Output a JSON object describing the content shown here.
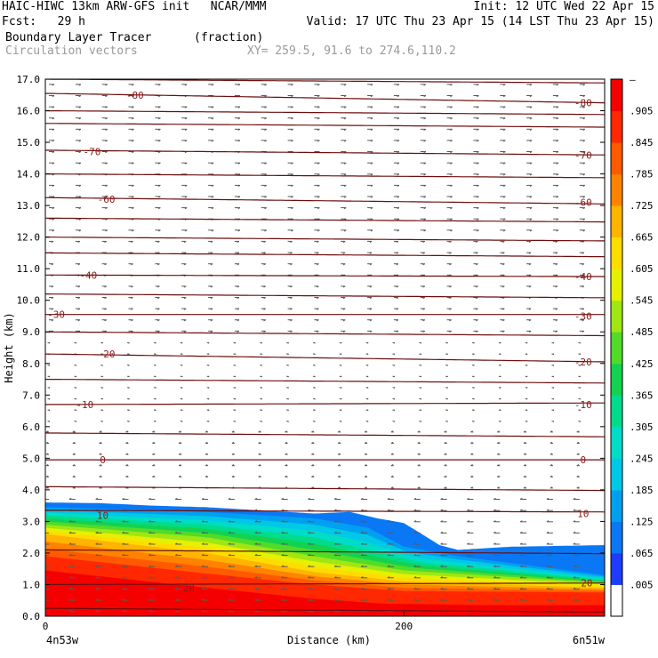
{
  "header": {
    "line1_left": "HAIC-HIWC 13km ARW-GFS init   NCAR/MMM",
    "line1_right": "Init: 12 UTC Wed 22 Apr 15",
    "line2_left": "Fcst:   29 h",
    "line2_right": "Valid: 17 UTC Thu 23 Apr 15 (14 LST Thu 23 Apr 15)",
    "field_name": "Boundary Layer Tracer",
    "field_units": "(fraction)",
    "overlay_name": "Circulation vectors",
    "xy_text": "XY= 259.5, 91.6 to 274.6,110.2"
  },
  "chart_data": {
    "type": "heatmap",
    "title": "Boundary Layer Tracer",
    "xlabel": "Distance (km)",
    "ylabel": "Height (km)",
    "xlim": [
      0,
      312
    ],
    "ylim": [
      0,
      17
    ],
    "x_ticks": [
      0,
      200
    ],
    "x_tick_labels": [
      "0",
      "200"
    ],
    "x_end_labels": [
      "4n53w",
      "6n51w"
    ],
    "y_ticks": [
      0.0,
      1.0,
      2.0,
      3.0,
      4.0,
      5.0,
      6.0,
      7.0,
      8.0,
      9.0,
      10.0,
      11.0,
      12.0,
      13.0,
      14.0,
      15.0,
      16.0,
      17.0
    ],
    "y_tick_labels": [
      "0.0",
      "1.0",
      "2.0",
      "3.0",
      "4.0",
      "5.0",
      "6.0",
      "7.0",
      "8.0",
      "9.0",
      "10.0",
      "11.0",
      "12.0",
      "13.0",
      "14.0",
      "15.0",
      "16.0",
      "17.0"
    ],
    "colorbar": {
      "levels": [
        0.005,
        0.065,
        0.125,
        0.185,
        0.245,
        0.305,
        0.365,
        0.425,
        0.485,
        0.545,
        0.605,
        0.665,
        0.725,
        0.785,
        0.845,
        0.905
      ],
      "labels": [
        ".005",
        ".065",
        ".125",
        ".185",
        ".245",
        ".305",
        ".365",
        ".425",
        ".485",
        ".545",
        ".605",
        ".665",
        ".725",
        ".785",
        ".845",
        ".905"
      ],
      "top_label": "–",
      "colors": [
        "#ffffff",
        "#1e3cff",
        "#0a78f5",
        "#00a0f0",
        "#00c8e6",
        "#00dcc8",
        "#00dc8c",
        "#14d250",
        "#50dc28",
        "#a0e614",
        "#e6f000",
        "#ffdc00",
        "#ffb400",
        "#ff8200",
        "#ff5a00",
        "#ff2800",
        "#f50000"
      ]
    },
    "top_of_tracer_km": [
      [
        0,
        3.6
      ],
      [
        30,
        3.58
      ],
      [
        60,
        3.5
      ],
      [
        90,
        3.45
      ],
      [
        120,
        3.35
      ],
      [
        150,
        3.25
      ],
      [
        170,
        3.3
      ],
      [
        185,
        3.1
      ],
      [
        200,
        2.95
      ],
      [
        210,
        2.6
      ],
      [
        220,
        2.25
      ],
      [
        230,
        2.1
      ],
      [
        260,
        2.2
      ],
      [
        312,
        2.25
      ]
    ],
    "tracer_bands": [
      {
        "value": 0.125,
        "heights_km": [
          [
            0,
            3.45
          ],
          [
            90,
            3.3
          ],
          [
            150,
            3.1
          ],
          [
            180,
            2.8
          ],
          [
            200,
            2.2
          ],
          [
            230,
            1.9
          ],
          [
            312,
            1.3
          ]
        ]
      },
      {
        "value": 0.305,
        "heights_km": [
          [
            0,
            3.2
          ],
          [
            90,
            2.9
          ],
          [
            150,
            2.5
          ],
          [
            180,
            2.1
          ],
          [
            210,
            1.7
          ],
          [
            312,
            1.15
          ]
        ]
      },
      {
        "value": 0.485,
        "heights_km": [
          [
            0,
            2.9
          ],
          [
            90,
            2.5
          ],
          [
            150,
            1.9
          ],
          [
            200,
            1.45
          ],
          [
            312,
            1.05
          ]
        ]
      },
      {
        "value": 0.665,
        "heights_km": [
          [
            0,
            2.6
          ],
          [
            90,
            2.0
          ],
          [
            150,
            1.4
          ],
          [
            200,
            1.1
          ],
          [
            312,
            0.9
          ]
        ]
      },
      {
        "value": 0.845,
        "heights_km": [
          [
            0,
            1.9
          ],
          [
            90,
            1.35
          ],
          [
            150,
            1.0
          ],
          [
            200,
            0.8
          ],
          [
            312,
            0.75
          ]
        ]
      }
    ],
    "temperature_contours": [
      {
        "label": "-80",
        "heights_km": [
          [
            0,
            16.55
          ],
          [
            312,
            16.25
          ]
        ],
        "label_positions_km": [
          [
            50,
            16.5
          ],
          [
            300,
            16.25
          ]
        ]
      },
      {
        "label": "-70",
        "heights_km": [
          [
            0,
            14.75
          ],
          [
            312,
            14.6
          ]
        ],
        "label_positions_km": [
          [
            26,
            14.7
          ],
          [
            300,
            14.6
          ]
        ]
      },
      {
        "label": "-60",
        "heights_km": [
          [
            0,
            13.25
          ],
          [
            312,
            13.05
          ]
        ],
        "label_positions_km": [
          [
            34,
            13.2
          ],
          [
            300,
            13.1
          ]
        ]
      },
      {
        "label": "-40",
        "heights_km": [
          [
            0,
            10.8
          ],
          [
            312,
            10.75
          ]
        ],
        "label_positions_km": [
          [
            24,
            10.8
          ],
          [
            300,
            10.75
          ]
        ]
      },
      {
        "label": "-30",
        "heights_km": [
          [
            0,
            9.55
          ],
          [
            312,
            9.55
          ]
        ],
        "label_positions_km": [
          [
            6,
            9.55
          ],
          [
            300,
            9.5
          ]
        ]
      },
      {
        "label": "-20",
        "heights_km": [
          [
            0,
            8.3
          ],
          [
            312,
            8.05
          ]
        ],
        "label_positions_km": [
          [
            34,
            8.3
          ],
          [
            300,
            8.05
          ]
        ]
      },
      {
        "label": "-10",
        "heights_km": [
          [
            0,
            6.7
          ],
          [
            312,
            6.75
          ]
        ],
        "label_positions_km": [
          [
            22,
            6.7
          ],
          [
            300,
            6.7
          ]
        ]
      },
      {
        "label": "0",
        "heights_km": [
          [
            0,
            4.95
          ],
          [
            312,
            4.95
          ]
        ],
        "label_positions_km": [
          [
            32,
            4.95
          ],
          [
            300,
            4.95
          ]
        ]
      },
      {
        "label": "10",
        "heights_km": [
          [
            0,
            3.35
          ],
          [
            312,
            3.3
          ]
        ],
        "label_positions_km": [
          [
            32,
            3.2
          ],
          [
            300,
            3.25
          ]
        ]
      },
      {
        "label": "20",
        "heights_km": [
          [
            0,
            1.0
          ],
          [
            312,
            1.05
          ]
        ],
        "label_positions_km": [
          [
            80,
            0.9
          ],
          [
            302,
            1.05
          ]
        ]
      }
    ],
    "extra_contour_heights_km": [
      17.0,
      16.0,
      15.6,
      14.0,
      12.6,
      12.0,
      11.5,
      10.2,
      9.0,
      7.5,
      5.8,
      4.1,
      2.1,
      0.25
    ],
    "circulation_vectors": [
      {
        "layer_km": [
          12,
          17
        ],
        "u": 6,
        "v": 0
      },
      {
        "layer_km": [
          9,
          12
        ],
        "u": 5,
        "v": 0
      },
      {
        "layer_km": [
          6,
          9
        ],
        "u": 1,
        "v": -1
      },
      {
        "layer_km": [
          4,
          6
        ],
        "u": -3,
        "v": 0
      },
      {
        "layer_km": [
          0,
          4
        ],
        "u": -7,
        "v": 0
      }
    ],
    "grid": false
  }
}
